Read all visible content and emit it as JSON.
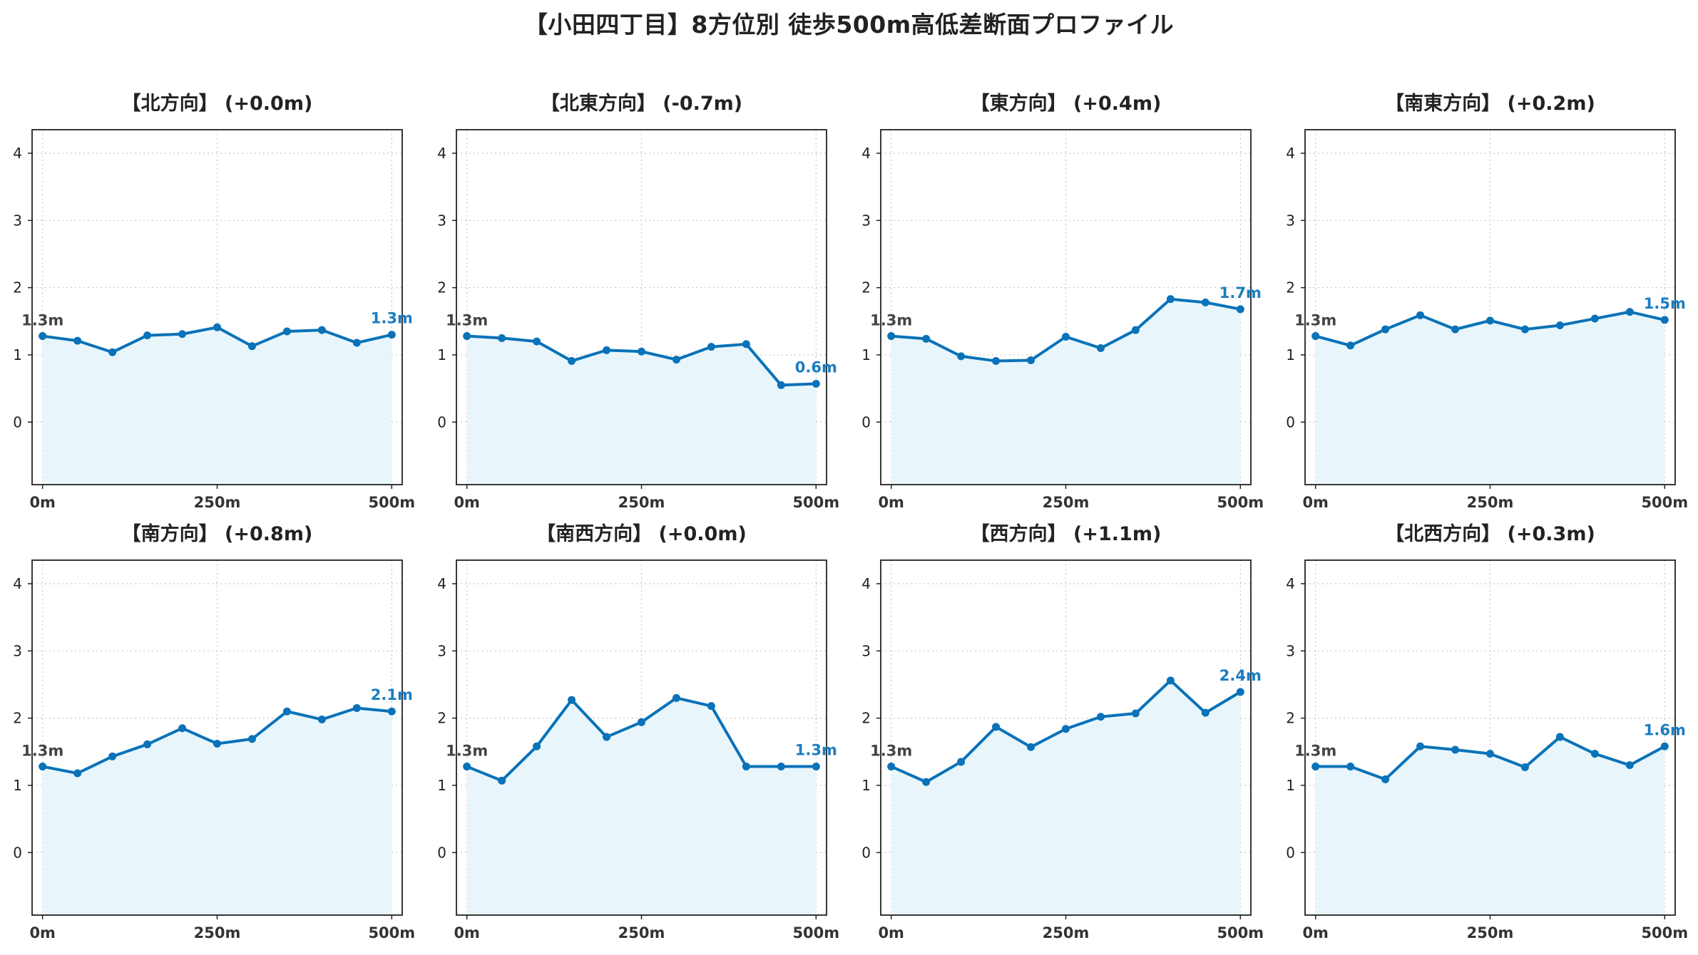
{
  "title": "【小田四丁目】8方位別 徒歩500m高低差断面プロファイル",
  "colors": {
    "line": "#0a72b8",
    "fill": "#e8f6fc",
    "grid": "#c8c8c8",
    "start_label": "#444444",
    "end_label": "#1b7dc0"
  },
  "chart_data": [
    {
      "type": "line",
      "title": "【北方向】 (+0.0m)",
      "xlim": [
        0,
        500
      ],
      "ylim": [
        -1,
        4
      ],
      "x": [
        0,
        50,
        100,
        150,
        200,
        250,
        300,
        350,
        400,
        450,
        500
      ],
      "y": [
        1.28,
        1.21,
        1.04,
        1.29,
        1.31,
        1.41,
        1.13,
        1.35,
        1.37,
        1.18,
        1.3
      ],
      "start_label": "1.3m",
      "end_label": "1.3m",
      "x_ticks": [
        "0m",
        "250m",
        "500m"
      ],
      "y_ticks": [
        "0",
        "1",
        "2",
        "3",
        "4"
      ]
    },
    {
      "type": "line",
      "title": "【北東方向】 (-0.7m)",
      "xlim": [
        0,
        500
      ],
      "ylim": [
        -1,
        4
      ],
      "x": [
        0,
        50,
        100,
        150,
        200,
        250,
        300,
        350,
        400,
        450,
        500
      ],
      "y": [
        1.28,
        1.25,
        1.2,
        0.91,
        1.07,
        1.05,
        0.93,
        1.12,
        1.16,
        0.55,
        0.57
      ],
      "start_label": "1.3m",
      "end_label": "0.6m",
      "x_ticks": [
        "0m",
        "250m",
        "500m"
      ],
      "y_ticks": [
        "0",
        "1",
        "2",
        "3",
        "4"
      ]
    },
    {
      "type": "line",
      "title": "【東方向】 (+0.4m)",
      "xlim": [
        0,
        500
      ],
      "ylim": [
        -1,
        4
      ],
      "x": [
        0,
        50,
        100,
        150,
        200,
        250,
        300,
        350,
        400,
        450,
        500
      ],
      "y": [
        1.28,
        1.24,
        0.98,
        0.91,
        0.92,
        1.27,
        1.1,
        1.37,
        1.83,
        1.78,
        1.68
      ],
      "start_label": "1.3m",
      "end_label": "1.7m",
      "x_ticks": [
        "0m",
        "250m",
        "500m"
      ],
      "y_ticks": [
        "0",
        "1",
        "2",
        "3",
        "4"
      ]
    },
    {
      "type": "line",
      "title": "【南東方向】 (+0.2m)",
      "xlim": [
        0,
        500
      ],
      "ylim": [
        -1,
        4
      ],
      "x": [
        0,
        50,
        100,
        150,
        200,
        250,
        300,
        350,
        400,
        450,
        500
      ],
      "y": [
        1.28,
        1.14,
        1.38,
        1.59,
        1.38,
        1.51,
        1.38,
        1.44,
        1.54,
        1.64,
        1.52
      ],
      "start_label": "1.3m",
      "end_label": "1.5m",
      "x_ticks": [
        "0m",
        "250m",
        "500m"
      ],
      "y_ticks": [
        "0",
        "1",
        "2",
        "3",
        "4"
      ]
    },
    {
      "type": "line",
      "title": "【南方向】 (+0.8m)",
      "xlim": [
        0,
        500
      ],
      "ylim": [
        -1,
        4
      ],
      "x": [
        0,
        50,
        100,
        150,
        200,
        250,
        300,
        350,
        400,
        450,
        500
      ],
      "y": [
        1.28,
        1.18,
        1.43,
        1.61,
        1.85,
        1.62,
        1.69,
        2.1,
        1.98,
        2.15,
        2.1
      ],
      "start_label": "1.3m",
      "end_label": "2.1m",
      "x_ticks": [
        "0m",
        "250m",
        "500m"
      ],
      "y_ticks": [
        "0",
        "1",
        "2",
        "3",
        "4"
      ]
    },
    {
      "type": "line",
      "title": "【南西方向】 (+0.0m)",
      "xlim": [
        0,
        500
      ],
      "ylim": [
        -1,
        4
      ],
      "x": [
        0,
        50,
        100,
        150,
        200,
        250,
        300,
        350,
        400,
        450,
        500
      ],
      "y": [
        1.28,
        1.07,
        1.58,
        2.27,
        1.72,
        1.94,
        2.3,
        2.18,
        1.28,
        1.28,
        1.28
      ],
      "start_label": "1.3m",
      "end_label": "1.3m",
      "x_ticks": [
        "0m",
        "250m",
        "500m"
      ],
      "y_ticks": [
        "0",
        "1",
        "2",
        "3",
        "4"
      ]
    },
    {
      "type": "line",
      "title": "【西方向】 (+1.1m)",
      "xlim": [
        0,
        500
      ],
      "ylim": [
        -1,
        4
      ],
      "x": [
        0,
        50,
        100,
        150,
        200,
        250,
        300,
        350,
        400,
        450,
        500
      ],
      "y": [
        1.28,
        1.05,
        1.35,
        1.87,
        1.57,
        1.84,
        2.02,
        2.07,
        2.56,
        2.08,
        2.39
      ],
      "start_label": "1.3m",
      "end_label": "2.4m",
      "x_ticks": [
        "0m",
        "250m",
        "500m"
      ],
      "y_ticks": [
        "0",
        "1",
        "2",
        "3",
        "4"
      ]
    },
    {
      "type": "line",
      "title": "【北西方向】 (+0.3m)",
      "xlim": [
        0,
        500
      ],
      "ylim": [
        -1,
        4
      ],
      "x": [
        0,
        50,
        100,
        150,
        200,
        250,
        300,
        350,
        400,
        450,
        500
      ],
      "y": [
        1.28,
        1.28,
        1.09,
        1.58,
        1.53,
        1.47,
        1.27,
        1.72,
        1.47,
        1.3,
        1.58
      ],
      "start_label": "1.3m",
      "end_label": "1.6m",
      "x_ticks": [
        "0m",
        "250m",
        "500m"
      ],
      "y_ticks": [
        "0",
        "1",
        "2",
        "3",
        "4"
      ]
    }
  ]
}
